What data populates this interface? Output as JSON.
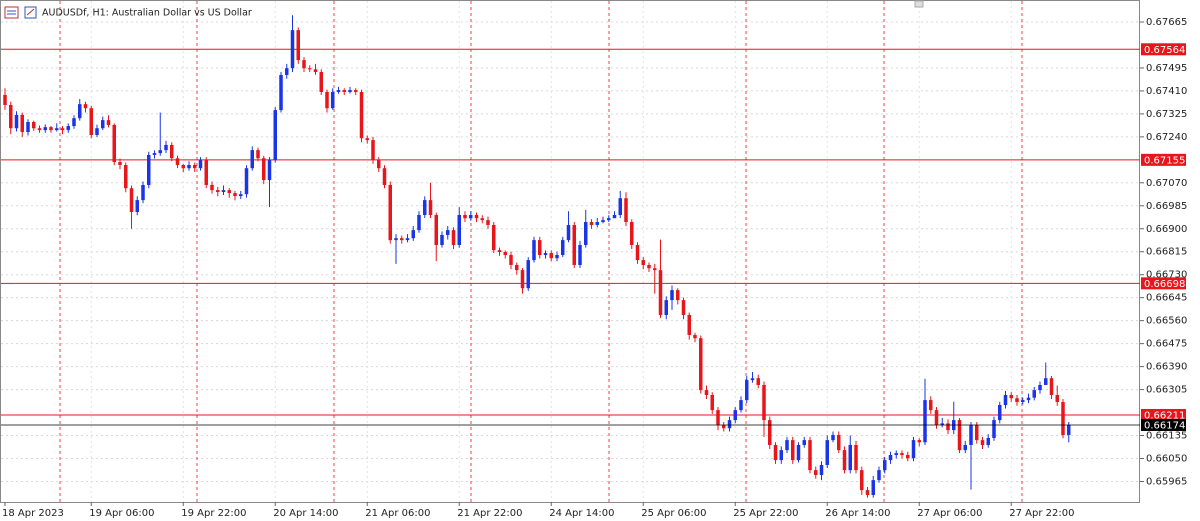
{
  "chart_data": {
    "type": "candlestick",
    "title": "AUDUSDf, H1:  Australian Dollar vs US Dollar",
    "up_color": "#1a35e8",
    "down_color": "#e8151b",
    "level_color": "#e8151b",
    "last_color": "#000000",
    "ylim": [
      0.65889,
      0.67739
    ],
    "yticks": [
      0.67665,
      0.67495,
      {
        "value": 0.6741,
        "label": "0.67410"
      },
      0.67325,
      {
        "value": 0.6724,
        "label": "0.67240"
      },
      {
        "value": 0.6707,
        "label": "0.67070"
      },
      0.66985,
      {
        "value": 0.669,
        "label": "0.66900"
      },
      0.66815,
      {
        "value": 0.6673,
        "label": "0.66730"
      },
      0.66645,
      {
        "value": 0.6656,
        "label": "0.66560"
      },
      0.66475,
      {
        "value": 0.6639,
        "label": "0.66390"
      },
      0.66305,
      0.66135,
      {
        "value": 0.6605,
        "label": "0.66050"
      },
      0.65965
    ],
    "grid": true,
    "levels": [
      0.67564,
      0.67155,
      0.66698,
      0.66211
    ],
    "last_price": 0.66174,
    "categories": [
      "18 Apr 2023",
      null,
      null,
      null,
      null,
      null,
      null,
      null,
      null,
      null,
      null,
      null,
      null,
      null,
      null,
      "19 Apr 06:00",
      null,
      null,
      null,
      null,
      null,
      null,
      null,
      null,
      null,
      null,
      null,
      null,
      null,
      null,
      null,
      "19 Apr 22:00",
      null,
      null,
      null,
      null,
      null,
      null,
      null,
      null,
      null,
      null,
      null,
      null,
      null,
      null,
      null,
      "20 Apr 14:00",
      null,
      null,
      null,
      null,
      null,
      null,
      null,
      null,
      null,
      null,
      null,
      null,
      null,
      null,
      null,
      "21 Apr 06:00",
      null,
      null,
      null,
      null,
      null,
      null,
      null,
      null,
      null,
      null,
      null,
      null,
      null,
      null,
      null,
      "21 Apr 22:00",
      null,
      null,
      null,
      null,
      null,
      null,
      null,
      null,
      null,
      null,
      null,
      null,
      null,
      null,
      null,
      "24 Apr 14:00",
      null,
      null,
      null,
      null,
      null,
      null,
      null,
      null,
      null,
      null,
      null,
      null,
      null,
      null,
      null,
      "25 Apr 06:00",
      null,
      null,
      null,
      null,
      null,
      null,
      null,
      null,
      null,
      null,
      null,
      null,
      null,
      null,
      null,
      "25 Apr 22:00",
      null,
      null,
      null,
      null,
      null,
      null,
      null,
      null,
      null,
      null,
      null,
      null,
      null,
      null,
      null,
      "26 Apr 14:00",
      null,
      null,
      null,
      null,
      null,
      null,
      null,
      null,
      null,
      null,
      null,
      null,
      null,
      null,
      null,
      "27 Apr 06:00",
      null,
      null,
      null,
      null,
      null,
      null,
      null,
      null,
      null,
      null,
      null,
      null,
      null,
      null,
      null,
      "27 Apr 22:00",
      null,
      null,
      null,
      null,
      null,
      null,
      null,
      null,
      null,
      null
    ],
    "ohlc": [
      [
        0.67395,
        0.6742,
        0.6734,
        0.67358
      ],
      [
        0.67358,
        0.6737,
        0.6725,
        0.67272
      ],
      [
        0.67272,
        0.67335,
        0.6726,
        0.67321
      ],
      [
        0.67321,
        0.6733,
        0.6724,
        0.67258
      ],
      [
        0.67258,
        0.67305,
        0.67245,
        0.67295
      ],
      [
        0.67295,
        0.673,
        0.67262,
        0.67272
      ],
      [
        0.67272,
        0.67282,
        0.67255,
        0.67265
      ],
      [
        0.67265,
        0.67286,
        0.67255,
        0.67276
      ],
      [
        0.67276,
        0.6728,
        0.67255,
        0.67265
      ],
      [
        0.67265,
        0.6729,
        0.6726,
        0.67272
      ],
      [
        0.67272,
        0.6728,
        0.6725,
        0.67265
      ],
      [
        0.67265,
        0.6729,
        0.67255,
        0.6728
      ],
      [
        0.6728,
        0.6732,
        0.6727,
        0.67309
      ],
      [
        0.67309,
        0.6738,
        0.673,
        0.67361
      ],
      [
        0.67361,
        0.6737,
        0.6733,
        0.67346
      ],
      [
        0.67346,
        0.67355,
        0.67235,
        0.67247
      ],
      [
        0.67247,
        0.67285,
        0.6724,
        0.67272
      ],
      [
        0.67272,
        0.67315,
        0.67265,
        0.67302
      ],
      [
        0.67302,
        0.6732,
        0.67275,
        0.67284
      ],
      [
        0.67284,
        0.6729,
        0.67135,
        0.67147
      ],
      [
        0.67147,
        0.6716,
        0.6712,
        0.67136
      ],
      [
        0.67136,
        0.67145,
        0.67035,
        0.6705
      ],
      [
        0.6705,
        0.6706,
        0.669,
        0.66962
      ],
      [
        0.66962,
        0.6702,
        0.6695,
        0.67006
      ],
      [
        0.67006,
        0.67075,
        0.66995,
        0.67062
      ],
      [
        0.67062,
        0.67185,
        0.6705,
        0.67173
      ],
      [
        0.67173,
        0.6719,
        0.6716,
        0.6718
      ],
      [
        0.6718,
        0.6733,
        0.6717,
        0.67191
      ],
      [
        0.67191,
        0.67225,
        0.6718,
        0.6721
      ],
      [
        0.6721,
        0.6722,
        0.6715,
        0.67161
      ],
      [
        0.67161,
        0.6717,
        0.67125,
        0.67136
      ],
      [
        0.67136,
        0.6714,
        0.6711,
        0.67124
      ],
      [
        0.67124,
        0.6715,
        0.67115,
        0.67136
      ],
      [
        0.67136,
        0.67145,
        0.6711,
        0.67124
      ],
      [
        0.67124,
        0.67165,
        0.67115,
        0.67154
      ],
      [
        0.67154,
        0.67165,
        0.6705,
        0.67062
      ],
      [
        0.67062,
        0.67075,
        0.6703,
        0.67043
      ],
      [
        0.67043,
        0.67055,
        0.6702,
        0.67036
      ],
      [
        0.67036,
        0.6706,
        0.67025,
        0.67043
      ],
      [
        0.67043,
        0.6705,
        0.67015,
        0.67032
      ],
      [
        0.67032,
        0.6704,
        0.67005,
        0.67021
      ],
      [
        0.67021,
        0.6704,
        0.6701,
        0.67028
      ],
      [
        0.67028,
        0.67135,
        0.67015,
        0.67124
      ],
      [
        0.67124,
        0.67205,
        0.67115,
        0.67191
      ],
      [
        0.67191,
        0.672,
        0.6715,
        0.67161
      ],
      [
        0.67161,
        0.6717,
        0.67065,
        0.6708
      ],
      [
        0.6708,
        0.67165,
        0.6698,
        0.67154
      ],
      [
        0.67154,
        0.6735,
        0.67145,
        0.67339
      ],
      [
        0.67339,
        0.6748,
        0.6733,
        0.67469
      ],
      [
        0.67469,
        0.6751,
        0.67455,
        0.67494
      ],
      [
        0.67494,
        0.6769,
        0.6748,
        0.67635
      ],
      [
        0.67635,
        0.67645,
        0.6751,
        0.67524
      ],
      [
        0.67524,
        0.67535,
        0.6748,
        0.67494
      ],
      [
        0.67494,
        0.67505,
        0.6748,
        0.6749
      ],
      [
        0.6749,
        0.6751,
        0.6747,
        0.6748
      ],
      [
        0.6748,
        0.6749,
        0.67395,
        0.67406
      ],
      [
        0.67406,
        0.67415,
        0.6733,
        0.67346
      ],
      [
        0.67346,
        0.6742,
        0.6734,
        0.67406
      ],
      [
        0.67406,
        0.67425,
        0.674,
        0.67413
      ],
      [
        0.67413,
        0.6742,
        0.67395,
        0.67406
      ],
      [
        0.67406,
        0.67425,
        0.674,
        0.67413
      ],
      [
        0.67413,
        0.6742,
        0.67395,
        0.67406
      ],
      [
        0.67406,
        0.67415,
        0.6722,
        0.67235
      ],
      [
        0.67235,
        0.67245,
        0.67215,
        0.67228
      ],
      [
        0.67228,
        0.6724,
        0.6714,
        0.67154
      ],
      [
        0.67154,
        0.67165,
        0.6711,
        0.67124
      ],
      [
        0.67124,
        0.67135,
        0.6705,
        0.67062
      ],
      [
        0.67062,
        0.67075,
        0.66845,
        0.66858
      ],
      [
        0.66858,
        0.6688,
        0.6677,
        0.66865
      ],
      [
        0.66865,
        0.66875,
        0.66845,
        0.66858
      ],
      [
        0.66858,
        0.6688,
        0.6685,
        0.66865
      ],
      [
        0.66865,
        0.6691,
        0.66855,
        0.66895
      ],
      [
        0.66895,
        0.66965,
        0.66885,
        0.66951
      ],
      [
        0.66951,
        0.6702,
        0.6694,
        0.67006
      ],
      [
        0.67006,
        0.6707,
        0.6694,
        0.66951
      ],
      [
        0.66951,
        0.6696,
        0.6678,
        0.6684
      ],
      [
        0.6684,
        0.6689,
        0.6683,
        0.66877
      ],
      [
        0.66877,
        0.6691,
        0.6686,
        0.66895
      ],
      [
        0.66895,
        0.66905,
        0.66825,
        0.6684
      ],
      [
        0.6684,
        0.6698,
        0.6683,
        0.66951
      ],
      [
        0.66951,
        0.66965,
        0.66925,
        0.66939
      ],
      [
        0.66939,
        0.66965,
        0.6693,
        0.66951
      ],
      [
        0.66951,
        0.6696,
        0.66925,
        0.66939
      ],
      [
        0.66939,
        0.6695,
        0.6692,
        0.66932
      ],
      [
        0.66932,
        0.66945,
        0.669,
        0.66914
      ],
      [
        0.66914,
        0.66925,
        0.6681,
        0.66821
      ],
      [
        0.66821,
        0.6683,
        0.668,
        0.66814
      ],
      [
        0.66814,
        0.6682,
        0.6679,
        0.66803
      ],
      [
        0.66803,
        0.66815,
        0.6675,
        0.66766
      ],
      [
        0.66766,
        0.66775,
        0.6673,
        0.66747
      ],
      [
        0.66747,
        0.66755,
        0.6666,
        0.6668
      ],
      [
        0.6668,
        0.66795,
        0.6667,
        0.66784
      ],
      [
        0.66784,
        0.6687,
        0.66775,
        0.66858
      ],
      [
        0.66858,
        0.6687,
        0.6679,
        0.66803
      ],
      [
        0.66803,
        0.6682,
        0.6679,
        0.6681
      ],
      [
        0.6681,
        0.6682,
        0.6678,
        0.66791
      ],
      [
        0.66791,
        0.66815,
        0.6678,
        0.66803
      ],
      [
        0.66803,
        0.6687,
        0.66795,
        0.66858
      ],
      [
        0.66858,
        0.66965,
        0.6685,
        0.66914
      ],
      [
        0.66914,
        0.66925,
        0.66755,
        0.66766
      ],
      [
        0.66766,
        0.66855,
        0.66755,
        0.6684
      ],
      [
        0.6684,
        0.6697,
        0.6683,
        0.66925
      ],
      [
        0.66925,
        0.66935,
        0.669,
        0.66914
      ],
      [
        0.66914,
        0.6694,
        0.66905,
        0.66925
      ],
      [
        0.66925,
        0.66945,
        0.6692,
        0.66932
      ],
      [
        0.66932,
        0.6695,
        0.66925,
        0.66939
      ],
      [
        0.66939,
        0.66965,
        0.6694,
        0.66951
      ],
      [
        0.66951,
        0.6704,
        0.6694,
        0.67013
      ],
      [
        0.67013,
        0.67035,
        0.6691,
        0.66925
      ],
      [
        0.66925,
        0.66935,
        0.66825,
        0.6684
      ],
      [
        0.6684,
        0.6685,
        0.6677,
        0.66784
      ],
      [
        0.66784,
        0.66795,
        0.6675,
        0.66766
      ],
      [
        0.66766,
        0.66775,
        0.6674,
        0.66754
      ],
      [
        0.66754,
        0.6677,
        0.6666,
        0.66747
      ],
      [
        0.66747,
        0.6686,
        0.6657,
        0.66581
      ],
      [
        0.66581,
        0.6665,
        0.66565,
        0.66636
      ],
      [
        0.66636,
        0.6669,
        0.666,
        0.66673
      ],
      [
        0.66673,
        0.6668,
        0.6662,
        0.66636
      ],
      [
        0.66636,
        0.66645,
        0.66565,
        0.66581
      ],
      [
        0.66581,
        0.6659,
        0.6649,
        0.66507
      ],
      [
        0.66507,
        0.66515,
        0.6648,
        0.66495
      ],
      [
        0.66495,
        0.66505,
        0.6629,
        0.66303
      ],
      [
        0.66303,
        0.6632,
        0.6627,
        0.66285
      ],
      [
        0.66285,
        0.66295,
        0.66215,
        0.66229
      ],
      [
        0.66229,
        0.6624,
        0.66155,
        0.66174
      ],
      [
        0.66174,
        0.66185,
        0.6615,
        0.66162
      ],
      [
        0.66162,
        0.66205,
        0.6615,
        0.66192
      ],
      [
        0.66192,
        0.6624,
        0.6618,
        0.66229
      ],
      [
        0.66229,
        0.6628,
        0.6622,
        0.66266
      ],
      [
        0.66266,
        0.66355,
        0.66255,
        0.6634
      ],
      [
        0.6634,
        0.6637,
        0.6633,
        0.66347
      ],
      [
        0.66347,
        0.6636,
        0.6631,
        0.66322
      ],
      [
        0.66322,
        0.66335,
        0.6613,
        0.66192
      ],
      [
        0.66192,
        0.66205,
        0.66085,
        0.661
      ],
      [
        0.661,
        0.6611,
        0.6603,
        0.66044
      ],
      [
        0.66044,
        0.66095,
        0.6603,
        0.66081
      ],
      [
        0.66081,
        0.6613,
        0.6607,
        0.66118
      ],
      [
        0.66118,
        0.6613,
        0.6603,
        0.66044
      ],
      [
        0.66044,
        0.6611,
        0.66035,
        0.661
      ],
      [
        0.661,
        0.6613,
        0.6609,
        0.66118
      ],
      [
        0.66118,
        0.6613,
        0.65995,
        0.66007
      ],
      [
        0.66007,
        0.6602,
        0.65975,
        0.65989
      ],
      [
        0.65989,
        0.6604,
        0.6597,
        0.66026
      ],
      [
        0.66026,
        0.66135,
        0.66015,
        0.66118
      ],
      [
        0.66118,
        0.6615,
        0.6611,
        0.66137
      ],
      [
        0.66137,
        0.6615,
        0.6607,
        0.66081
      ],
      [
        0.66081,
        0.66095,
        0.65995,
        0.66007
      ],
      [
        0.66007,
        0.66135,
        0.65995,
        0.661
      ],
      [
        0.661,
        0.66115,
        0.65995,
        0.66007
      ],
      [
        0.66007,
        0.6602,
        0.65915,
        0.65933
      ],
      [
        0.65933,
        0.65945,
        0.65905,
        0.65915
      ],
      [
        0.65915,
        0.65985,
        0.65905,
        0.6597
      ],
      [
        0.6597,
        0.6602,
        0.6596,
        0.66007
      ],
      [
        0.66007,
        0.66055,
        0.65995,
        0.66044
      ],
      [
        0.66044,
        0.66075,
        0.6603,
        0.66063
      ],
      [
        0.66063,
        0.6608,
        0.6605,
        0.6607
      ],
      [
        0.6607,
        0.6608,
        0.6605,
        0.66063
      ],
      [
        0.66063,
        0.66075,
        0.6604,
        0.66051
      ],
      [
        0.66051,
        0.6613,
        0.6604,
        0.66118
      ],
      [
        0.66118,
        0.66125,
        0.66095,
        0.6611
      ],
      [
        0.6611,
        0.66345,
        0.661,
        0.66266
      ],
      [
        0.66266,
        0.6628,
        0.66215,
        0.66229
      ],
      [
        0.66229,
        0.6624,
        0.6616,
        0.66174
      ],
      [
        0.66174,
        0.662,
        0.66165,
        0.6618
      ],
      [
        0.6618,
        0.66195,
        0.6614,
        0.66155
      ],
      [
        0.66155,
        0.6626,
        0.6614,
        0.66192
      ],
      [
        0.66192,
        0.662,
        0.6607,
        0.66081
      ],
      [
        0.66081,
        0.66115,
        0.6607,
        0.661
      ],
      [
        0.661,
        0.66185,
        0.65935,
        0.66174
      ],
      [
        0.66174,
        0.66185,
        0.66105,
        0.66118
      ],
      [
        0.66118,
        0.6613,
        0.66085,
        0.661
      ],
      [
        0.661,
        0.6614,
        0.6609,
        0.66126
      ],
      [
        0.66126,
        0.66205,
        0.66115,
        0.66192
      ],
      [
        0.66192,
        0.6626,
        0.6618,
        0.66248
      ],
      [
        0.66248,
        0.663,
        0.66235,
        0.66285
      ],
      [
        0.66285,
        0.66295,
        0.6626,
        0.66273
      ],
      [
        0.66273,
        0.66285,
        0.66245,
        0.66259
      ],
      [
        0.66259,
        0.66275,
        0.6625,
        0.66266
      ],
      [
        0.66266,
        0.6629,
        0.66255,
        0.66275
      ],
      [
        0.66275,
        0.66315,
        0.66265,
        0.66303
      ],
      [
        0.66303,
        0.66335,
        0.6629,
        0.66322
      ],
      [
        0.66322,
        0.66405,
        0.66335,
        0.66347
      ],
      [
        0.66347,
        0.66355,
        0.6627,
        0.66285
      ],
      [
        0.66285,
        0.6632,
        0.66245,
        0.66259
      ],
      [
        0.66259,
        0.6627,
        0.66125,
        0.66137
      ],
      [
        0.66137,
        0.66185,
        0.6611,
        0.66174
      ]
    ]
  }
}
